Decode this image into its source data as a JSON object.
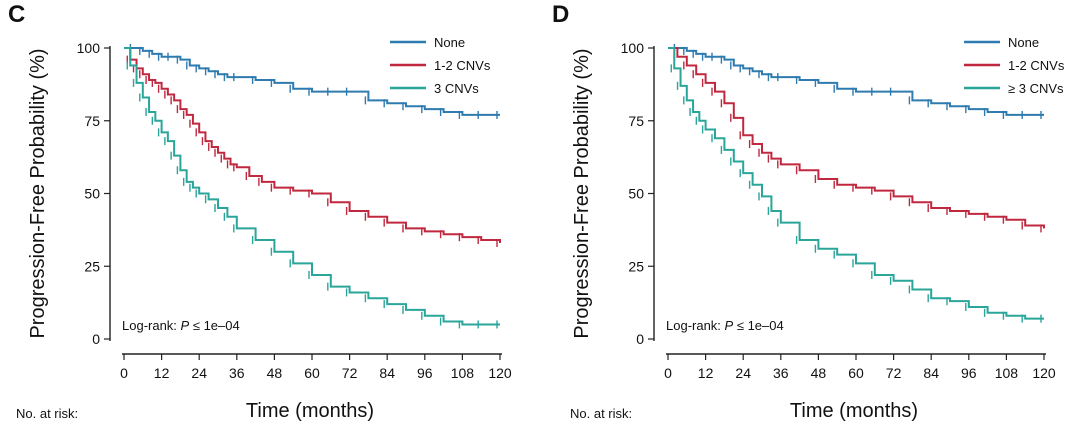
{
  "colors": {
    "None": "#2e7bb0",
    "1-2 CNVs": "#c0283f",
    "3 CNVs": "#2aa59a"
  },
  "chart_data": [
    {
      "type": "line",
      "panel_label": "C",
      "xlabel": "Time (months)",
      "ylabel": "Progression-Free Probability (%)",
      "xlim": [
        0,
        120
      ],
      "ylim": [
        0,
        100
      ],
      "xticks": [
        0,
        12,
        24,
        36,
        48,
        60,
        72,
        84,
        96,
        108,
        120
      ],
      "yticks": [
        0,
        25,
        50,
        75,
        100
      ],
      "legend_position": "top-right",
      "annotation": {
        "prefix": "Log-rank: ",
        "italic": "P",
        "suffix": " ≤ 1e–04"
      },
      "risk_label": "No. at risk:",
      "series": [
        {
          "name": "None",
          "color": "#2e7bb0",
          "x": [
            0,
            3,
            6,
            9,
            12,
            15,
            18,
            21,
            24,
            27,
            30,
            33,
            36,
            42,
            48,
            54,
            60,
            66,
            72,
            78,
            84,
            90,
            96,
            102,
            108,
            114,
            120
          ],
          "y": [
            100,
            100,
            99,
            98,
            97,
            97,
            96,
            94,
            93,
            92,
            91,
            90,
            90,
            89,
            88,
            86,
            85,
            85,
            85,
            82,
            81,
            80,
            79,
            78,
            77,
            77,
            77
          ]
        },
        {
          "name": "1-2 CNVs",
          "color": "#c0283f",
          "x": [
            0,
            2,
            4,
            6,
            8,
            10,
            12,
            14,
            16,
            18,
            20,
            22,
            24,
            26,
            28,
            30,
            32,
            34,
            36,
            40,
            44,
            48,
            54,
            60,
            66,
            72,
            78,
            84,
            90,
            96,
            102,
            108,
            114,
            120
          ],
          "y": [
            100,
            96,
            93,
            91,
            89,
            88,
            86,
            84,
            82,
            79,
            77,
            74,
            71,
            68,
            66,
            64,
            62,
            60,
            59,
            56,
            54,
            52,
            51,
            50,
            47,
            44,
            42,
            40,
            38,
            37,
            36,
            35,
            34,
            33
          ]
        },
        {
          "name": "3 CNVs",
          "color": "#2aa59a",
          "x": [
            0,
            2,
            4,
            6,
            8,
            10,
            12,
            14,
            16,
            18,
            20,
            22,
            24,
            27,
            30,
            33,
            36,
            42,
            48,
            54,
            60,
            66,
            72,
            78,
            84,
            90,
            96,
            102,
            108,
            114,
            120
          ],
          "y": [
            100,
            94,
            88,
            83,
            78,
            75,
            71,
            68,
            63,
            58,
            54,
            52,
            50,
            48,
            45,
            42,
            38,
            34,
            30,
            26,
            22,
            18,
            16,
            14,
            12,
            10,
            8,
            6,
            5,
            5,
            5
          ]
        }
      ]
    },
    {
      "type": "line",
      "panel_label": "D",
      "xlabel": "Time (months)",
      "ylabel": "Progression-Free Probability (%)",
      "xlim": [
        0,
        120
      ],
      "ylim": [
        0,
        100
      ],
      "xticks": [
        0,
        12,
        24,
        36,
        48,
        60,
        72,
        84,
        96,
        108,
        120
      ],
      "yticks": [
        0,
        25,
        50,
        75,
        100
      ],
      "legend_position": "top-right",
      "annotation": {
        "prefix": "Log-rank: ",
        "italic": "P",
        "suffix": " ≤ 1e–04"
      },
      "risk_label": "No. at risk:",
      "series": [
        {
          "name": "None",
          "color": "#2e7bb0",
          "x": [
            0,
            3,
            6,
            9,
            12,
            15,
            18,
            21,
            24,
            27,
            30,
            33,
            36,
            42,
            48,
            54,
            60,
            66,
            72,
            78,
            84,
            90,
            96,
            102,
            108,
            114,
            120
          ],
          "y": [
            100,
            100,
            99,
            98,
            97,
            97,
            96,
            94,
            93,
            92,
            91,
            90,
            90,
            89,
            88,
            86,
            85,
            85,
            85,
            82,
            81,
            80,
            79,
            78,
            77,
            77,
            77
          ]
        },
        {
          "name": "1-2 CNVs",
          "color": "#c0283f",
          "x": [
            0,
            3,
            6,
            9,
            12,
            15,
            18,
            21,
            24,
            27,
            30,
            33,
            36,
            42,
            48,
            54,
            60,
            66,
            72,
            78,
            84,
            90,
            96,
            102,
            108,
            114,
            120
          ],
          "y": [
            100,
            97,
            94,
            91,
            88,
            85,
            81,
            76,
            70,
            67,
            64,
            62,
            60,
            58,
            55,
            53,
            52,
            51,
            49,
            47,
            45,
            44,
            43,
            42,
            41,
            39,
            38
          ]
        },
        {
          "name": "≥ 3 CNVs",
          "color": "#2aa59a",
          "x": [
            0,
            2,
            4,
            6,
            8,
            10,
            12,
            15,
            18,
            21,
            24,
            27,
            30,
            33,
            36,
            42,
            48,
            54,
            60,
            66,
            72,
            78,
            84,
            90,
            96,
            102,
            108,
            114,
            120
          ],
          "y": [
            100,
            93,
            87,
            82,
            78,
            75,
            72,
            69,
            65,
            61,
            57,
            53,
            49,
            44,
            40,
            34,
            31,
            29,
            26,
            22,
            20,
            17,
            14,
            13,
            11,
            9,
            8,
            7,
            7
          ]
        }
      ]
    }
  ]
}
